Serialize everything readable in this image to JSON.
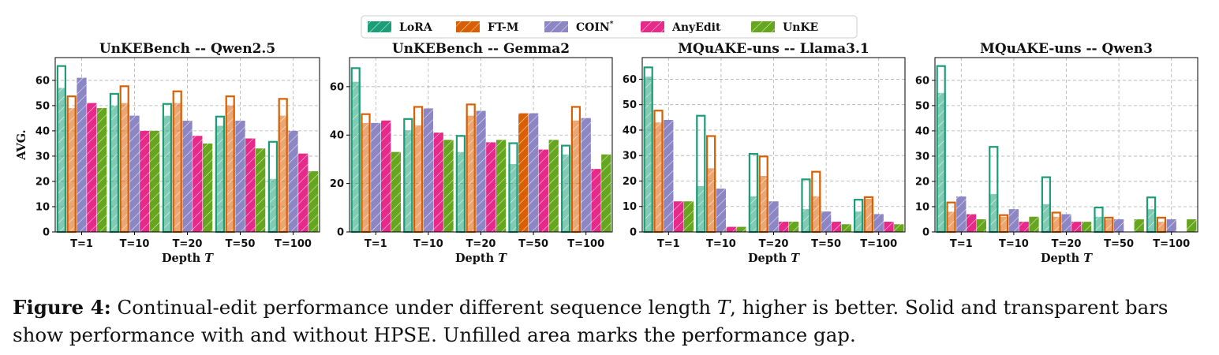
{
  "colors": {
    "LoRA": "#1b9e77",
    "FT-M": "#d95f02",
    "COIN*": "#8c86c4",
    "AnyEdit": "#e7298a",
    "UnKE": "#66a61e"
  },
  "legend": [
    "LoRA",
    "FT-M",
    "COIN",
    "AnyEdit",
    "UnKE"
  ],
  "legend_superscript": "*",
  "caption": {
    "label": "Figure 4:",
    "text_before_T": " Continual-edit performance under different sequence length ",
    "T": "T",
    "text_after_T": ", higher is better. Solid and transparent bars show performance with and without HPSE. Unfilled area marks the performance gap."
  },
  "chart_data": [
    {
      "type": "bar",
      "title": "UnKEBench -- Qwen2.5",
      "xlabel": "Depth",
      "xlabel_var": "T",
      "ylabel": "AVG.",
      "ylim": [
        0,
        69
      ],
      "yticks": [
        0,
        10,
        20,
        30,
        40,
        50,
        60
      ],
      "categories": [
        "T=1",
        "T=10",
        "T=20",
        "T=50",
        "T=100"
      ],
      "grid": true,
      "series": [
        {
          "name": "LoRA",
          "with_hpse": [
            66,
            55,
            51,
            46,
            36
          ],
          "without_hpse": [
            57,
            50,
            46,
            42,
            21
          ]
        },
        {
          "name": "FT-M",
          "with_hpse": [
            54,
            58,
            56,
            54,
            53
          ],
          "without_hpse": [
            49,
            51,
            51,
            50,
            46
          ]
        },
        {
          "name": "COIN*",
          "with_hpse": [
            61,
            46,
            44,
            44,
            40
          ],
          "without_hpse": [
            61,
            46,
            44,
            44,
            40
          ]
        },
        {
          "name": "AnyEdit",
          "with_hpse": [
            51,
            40,
            38,
            37,
            31
          ],
          "without_hpse": [
            51,
            40,
            38,
            37,
            31
          ]
        },
        {
          "name": "UnKE",
          "with_hpse": [
            49,
            40,
            35,
            33,
            24
          ],
          "without_hpse": [
            49,
            40,
            35,
            33,
            24
          ]
        }
      ]
    },
    {
      "type": "bar",
      "title": "UnKEBench -- Gemma2",
      "xlabel": "Depth",
      "xlabel_var": "T",
      "ylabel": "",
      "ylim": [
        0,
        72
      ],
      "yticks": [
        0,
        20,
        40,
        60
      ],
      "categories": [
        "T=1",
        "T=10",
        "T=20",
        "T=50",
        "T=100"
      ],
      "grid": true,
      "series": [
        {
          "name": "LoRA",
          "with_hpse": [
            68,
            47,
            40,
            37,
            36
          ],
          "without_hpse": [
            62,
            42,
            33,
            28,
            32
          ]
        },
        {
          "name": "FT-M",
          "with_hpse": [
            49,
            52,
            53,
            49,
            52
          ],
          "without_hpse": [
            45,
            44,
            48,
            49,
            46
          ]
        },
        {
          "name": "COIN*",
          "with_hpse": [
            45,
            51,
            50,
            49,
            47
          ],
          "without_hpse": [
            45,
            51,
            50,
            49,
            47
          ]
        },
        {
          "name": "AnyEdit",
          "with_hpse": [
            46,
            41,
            37,
            34,
            26
          ],
          "without_hpse": [
            46,
            41,
            37,
            34,
            26
          ]
        },
        {
          "name": "UnKE",
          "with_hpse": [
            33,
            38,
            38,
            38,
            32
          ],
          "without_hpse": [
            33,
            38,
            38,
            38,
            32
          ]
        }
      ]
    },
    {
      "type": "bar",
      "title": "MQuAKE-uns -- Llama3.1",
      "xlabel": "Depth",
      "xlabel_var": "T",
      "ylabel": "",
      "ylim": [
        0,
        68.5
      ],
      "yticks": [
        0,
        10,
        20,
        30,
        40,
        50,
        60
      ],
      "categories": [
        "T=1",
        "T=10",
        "T=20",
        "T=50",
        "T=100"
      ],
      "grid": true,
      "series": [
        {
          "name": "LoRA",
          "with_hpse": [
            65,
            46,
            31,
            21,
            13
          ],
          "without_hpse": [
            61,
            18,
            14,
            9,
            8
          ]
        },
        {
          "name": "FT-M",
          "with_hpse": [
            48,
            38,
            30,
            24,
            14
          ],
          "without_hpse": [
            43,
            25,
            22,
            14,
            13
          ]
        },
        {
          "name": "COIN*",
          "with_hpse": [
            44,
            17,
            12,
            8,
            7
          ],
          "without_hpse": [
            44,
            17,
            12,
            8,
            7
          ]
        },
        {
          "name": "AnyEdit",
          "with_hpse": [
            12,
            2,
            4,
            4,
            4
          ],
          "without_hpse": [
            12,
            2,
            4,
            4,
            4
          ]
        },
        {
          "name": "UnKE",
          "with_hpse": [
            12,
            2,
            4,
            3,
            3
          ],
          "without_hpse": [
            12,
            2,
            4,
            3,
            3
          ]
        }
      ]
    },
    {
      "type": "bar",
      "title": "MQuAKE-uns -- Qwen3",
      "xlabel": "Depth",
      "xlabel_var": "T",
      "ylabel": "",
      "ylim": [
        0,
        69
      ],
      "yticks": [
        0,
        10,
        20,
        30,
        40,
        50,
        60
      ],
      "categories": [
        "T=1",
        "T=10",
        "T=20",
        "T=50",
        "T=100"
      ],
      "grid": true,
      "series": [
        {
          "name": "LoRA",
          "with_hpse": [
            66,
            34,
            22,
            10,
            14
          ],
          "without_hpse": [
            55,
            15,
            11,
            6,
            9
          ]
        },
        {
          "name": "FT-M",
          "with_hpse": [
            12,
            7,
            8,
            6,
            6
          ],
          "without_hpse": [
            8,
            6,
            6,
            5,
            4
          ]
        },
        {
          "name": "COIN*",
          "with_hpse": [
            14,
            9,
            7,
            5,
            5
          ],
          "without_hpse": [
            14,
            9,
            7,
            5,
            5
          ]
        },
        {
          "name": "AnyEdit",
          "with_hpse": [
            7,
            4,
            4,
            0,
            0
          ],
          "without_hpse": [
            7,
            4,
            4,
            0,
            0
          ]
        },
        {
          "name": "UnKE",
          "with_hpse": [
            5,
            6,
            4,
            5,
            5
          ],
          "without_hpse": [
            5,
            6,
            4,
            5,
            5
          ]
        }
      ]
    }
  ]
}
